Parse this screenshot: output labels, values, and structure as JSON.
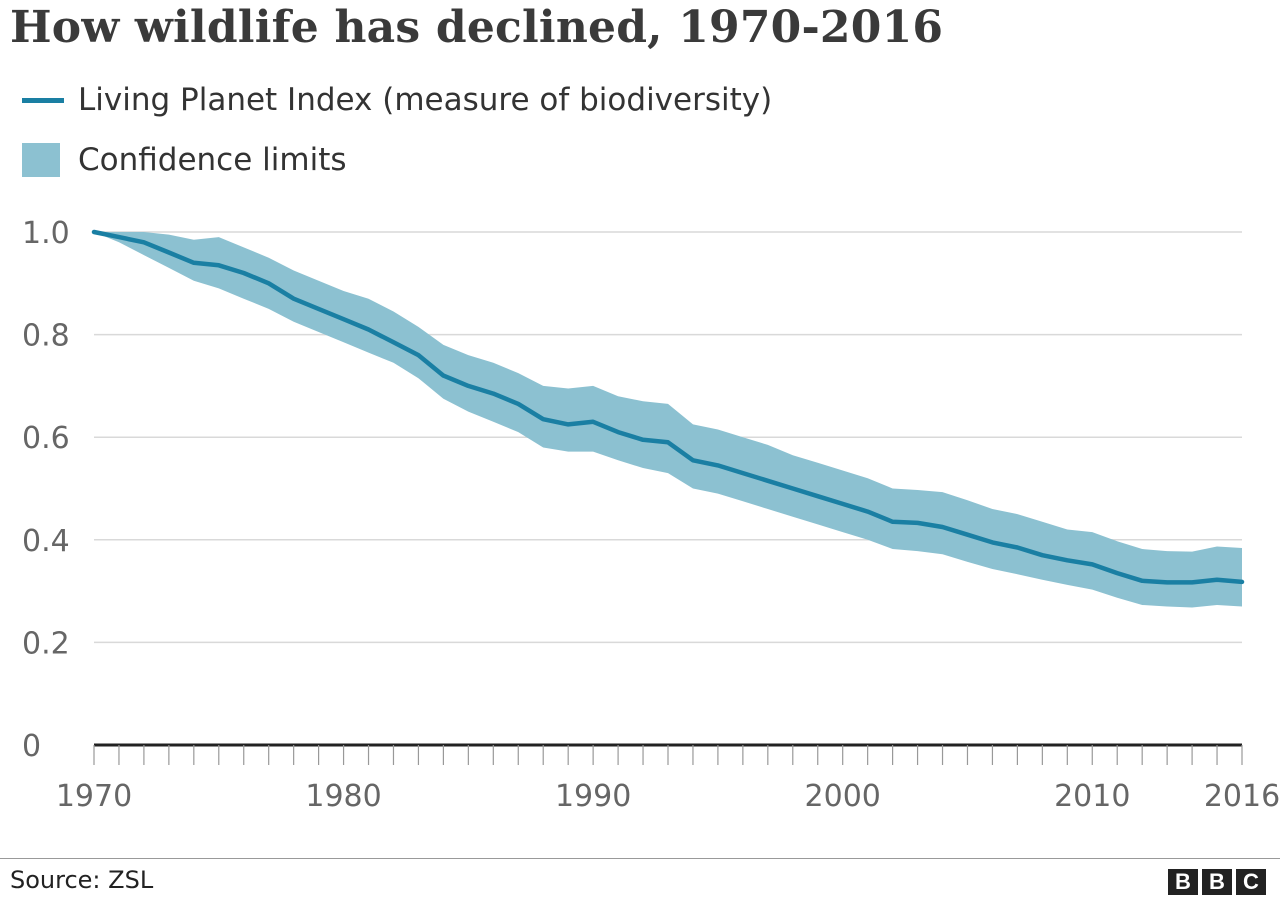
{
  "colors": {
    "line": "#1a7fa3",
    "band": "#8cc1d1",
    "grid": "#d9d9d9",
    "axis": "#222222"
  },
  "footer": {
    "source": "Source: ZSL",
    "logo": [
      "B",
      "B",
      "C"
    ]
  },
  "chart_data": {
    "type": "line",
    "title": "How wildlife has declined, 1970-2016",
    "xlabel": "",
    "ylabel": "",
    "xlim": [
      1970,
      2016
    ],
    "ylim": [
      0,
      1.0
    ],
    "x_ticks": [
      1970,
      1980,
      1990,
      2000,
      2010,
      2016
    ],
    "y_ticks": [
      {
        "value": 0,
        "label": "0"
      },
      {
        "value": 0.2,
        "label": "0.2"
      },
      {
        "value": 0.4,
        "label": "0.4"
      },
      {
        "value": 0.6,
        "label": "0.6"
      },
      {
        "value": 0.8,
        "label": "0.8"
      },
      {
        "value": 1.0,
        "label": "1.0"
      }
    ],
    "grid": true,
    "legend_placement": "top-left",
    "legend": [
      {
        "name": "Living Planet Index (measure of biodiversity)",
        "kind": "line"
      },
      {
        "name": "Confidence limits",
        "kind": "band"
      }
    ],
    "x": [
      1970,
      1971,
      1972,
      1973,
      1974,
      1975,
      1976,
      1977,
      1978,
      1979,
      1980,
      1981,
      1982,
      1983,
      1984,
      1985,
      1986,
      1987,
      1988,
      1989,
      1990,
      1991,
      1992,
      1993,
      1994,
      1995,
      1996,
      1997,
      1998,
      1999,
      2000,
      2001,
      2002,
      2003,
      2004,
      2005,
      2006,
      2007,
      2008,
      2009,
      2010,
      2011,
      2012,
      2013,
      2014,
      2015,
      2016
    ],
    "series": [
      {
        "name": "Living Planet Index (measure of biodiversity)",
        "values": [
          1.0,
          0.99,
          0.98,
          0.96,
          0.94,
          0.935,
          0.92,
          0.9,
          0.87,
          0.85,
          0.83,
          0.81,
          0.785,
          0.76,
          0.72,
          0.7,
          0.685,
          0.665,
          0.635,
          0.625,
          0.63,
          0.61,
          0.595,
          0.59,
          0.555,
          0.545,
          0.53,
          0.515,
          0.5,
          0.485,
          0.47,
          0.455,
          0.435,
          0.433,
          0.425,
          0.41,
          0.395,
          0.385,
          0.37,
          0.36,
          0.352,
          0.335,
          0.32,
          0.317,
          0.317,
          0.322,
          0.318
        ]
      },
      {
        "name": "Confidence limits (upper)",
        "values": [
          1.0,
          1.0,
          1.0,
          0.995,
          0.985,
          0.99,
          0.97,
          0.95,
          0.925,
          0.905,
          0.885,
          0.87,
          0.845,
          0.815,
          0.78,
          0.76,
          0.745,
          0.725,
          0.7,
          0.695,
          0.7,
          0.68,
          0.67,
          0.665,
          0.625,
          0.615,
          0.6,
          0.585,
          0.565,
          0.55,
          0.535,
          0.52,
          0.5,
          0.497,
          0.493,
          0.477,
          0.46,
          0.45,
          0.435,
          0.42,
          0.415,
          0.397,
          0.382,
          0.378,
          0.377,
          0.387,
          0.384
        ]
      },
      {
        "name": "Confidence limits (lower)",
        "values": [
          1.0,
          0.98,
          0.955,
          0.93,
          0.905,
          0.89,
          0.87,
          0.85,
          0.825,
          0.805,
          0.785,
          0.765,
          0.745,
          0.715,
          0.675,
          0.65,
          0.63,
          0.61,
          0.58,
          0.572,
          0.572,
          0.555,
          0.54,
          0.53,
          0.5,
          0.49,
          0.475,
          0.46,
          0.445,
          0.43,
          0.415,
          0.4,
          0.382,
          0.378,
          0.372,
          0.357,
          0.343,
          0.333,
          0.322,
          0.312,
          0.303,
          0.287,
          0.273,
          0.27,
          0.268,
          0.273,
          0.27
        ]
      }
    ]
  }
}
